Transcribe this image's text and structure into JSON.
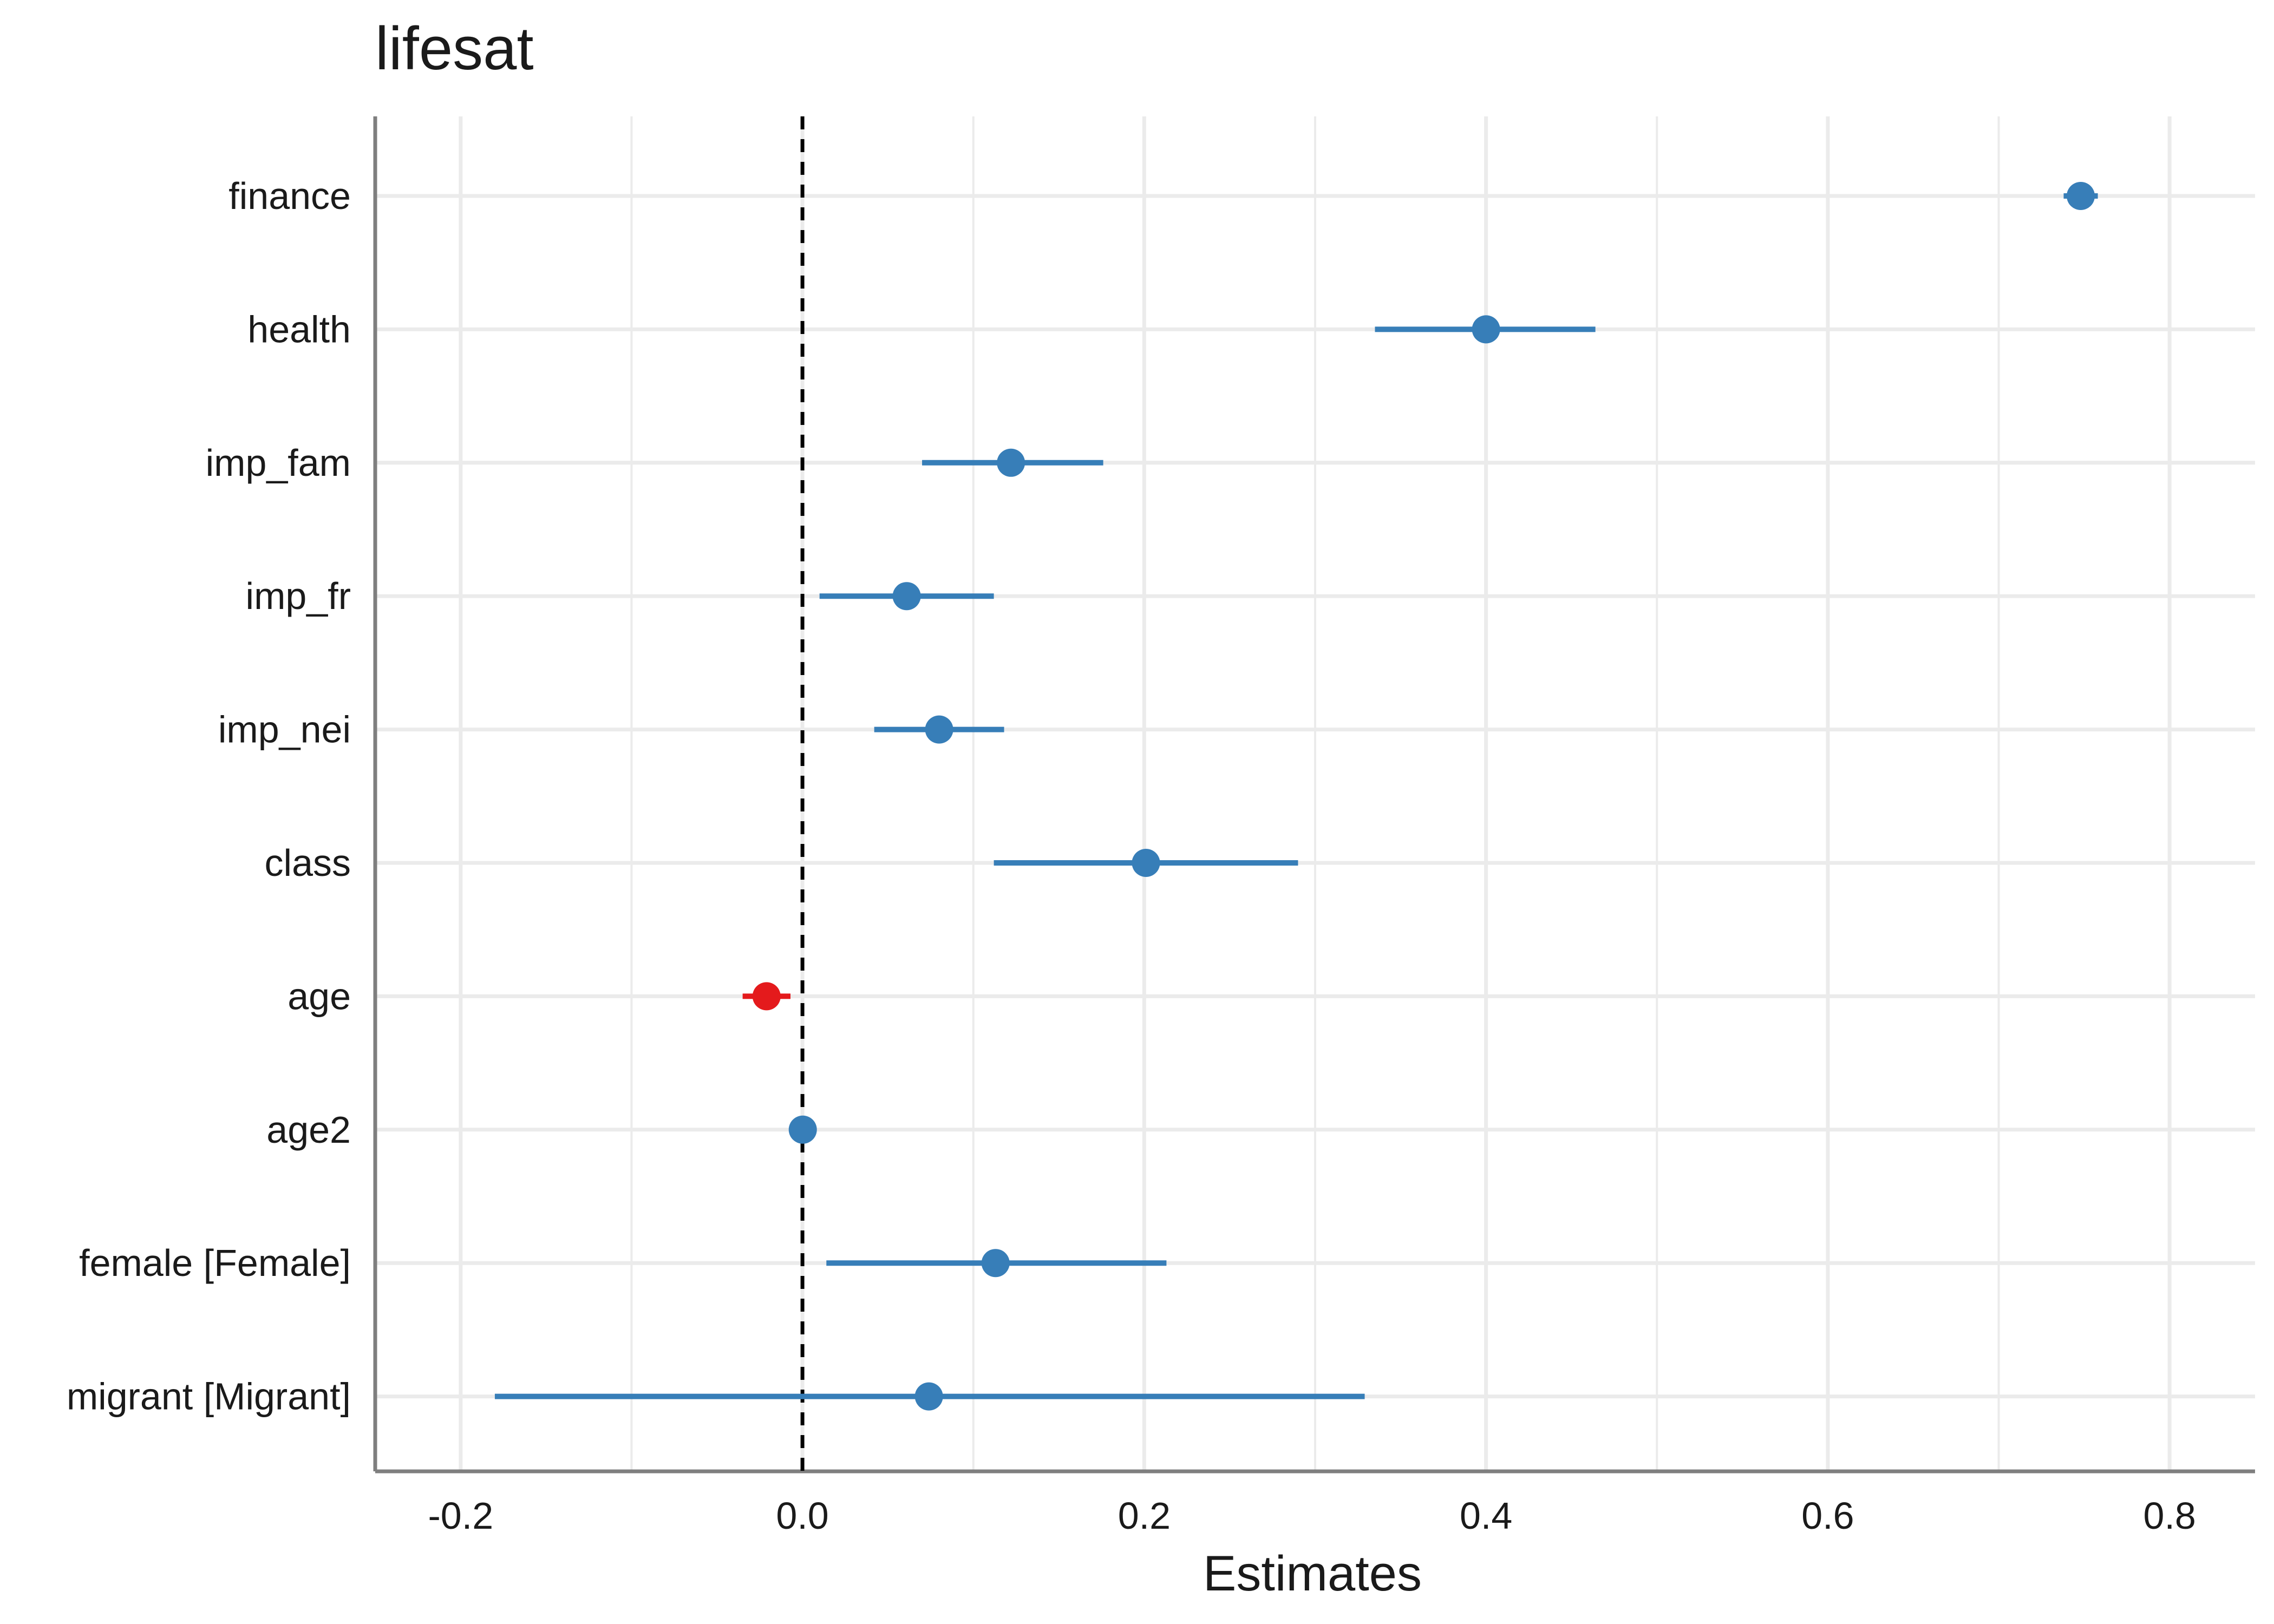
{
  "chart_data": {
    "type": "forest",
    "title": "lifesat",
    "xlabel": "Estimates",
    "ylabel": "",
    "xlim": [
      -0.25,
      0.85
    ],
    "x_ticks": [
      -0.2,
      0.0,
      0.2,
      0.4,
      0.6,
      0.8
    ],
    "x_tick_labels": [
      "-0.2",
      "0.0",
      "0.2",
      "0.4",
      "0.6",
      "0.8"
    ],
    "reference_line": 0,
    "grid": true,
    "legend": "none",
    "colors": {
      "positive": "#377eb8",
      "negative": "#e41a1c",
      "grid": "#ebebeb",
      "axis": "#7f7f7f",
      "reference": "#000000"
    },
    "terms": [
      {
        "label": "finance",
        "estimate": 0.748,
        "conf_low": 0.738,
        "conf_high": 0.758
      },
      {
        "label": "health",
        "estimate": 0.4,
        "conf_low": 0.335,
        "conf_high": 0.464
      },
      {
        "label": "imp_fam",
        "estimate": 0.122,
        "conf_low": 0.07,
        "conf_high": 0.176
      },
      {
        "label": "imp_fr",
        "estimate": 0.061,
        "conf_low": 0.01,
        "conf_high": 0.112
      },
      {
        "label": "imp_nei",
        "estimate": 0.08,
        "conf_low": 0.042,
        "conf_high": 0.118
      },
      {
        "label": "class",
        "estimate": 0.201,
        "conf_low": 0.112,
        "conf_high": 0.29
      },
      {
        "label": "age",
        "estimate": -0.021,
        "conf_low": -0.035,
        "conf_high": -0.007
      },
      {
        "label": "age2",
        "estimate": 0.0002,
        "conf_low": 0.0,
        "conf_high": 0.0004
      },
      {
        "label": "female [Female]",
        "estimate": 0.113,
        "conf_low": 0.014,
        "conf_high": 0.213
      },
      {
        "label": "migrant [Migrant]",
        "estimate": 0.074,
        "conf_low": -0.18,
        "conf_high": 0.329
      }
    ]
  }
}
